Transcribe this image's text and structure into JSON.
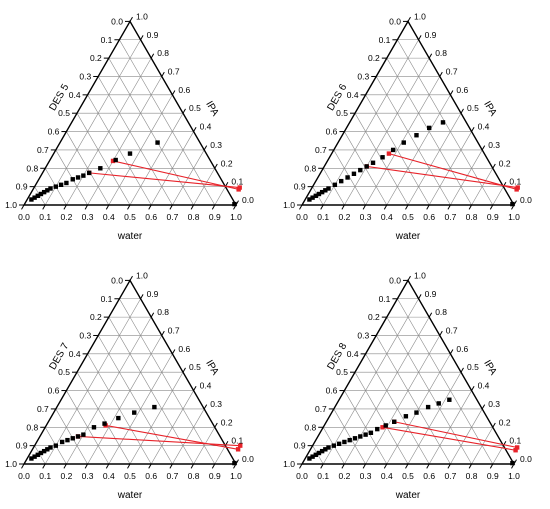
{
  "chart_data": [
    {
      "type": "scatter",
      "title": "",
      "subtype": "ternary",
      "axes": {
        "left": "DES 5",
        "right": "IPA",
        "bottom": "water"
      },
      "left_ticks": [
        "0.0",
        "0.1",
        "0.2",
        "0.3",
        "0.4",
        "0.5",
        "0.6",
        "0.7",
        "0.8",
        "0.9",
        "1.0"
      ],
      "right_ticks": [
        "1.0",
        "0.9",
        "0.8",
        "0.7",
        "0.6",
        "0.5",
        "0.4",
        "0.3",
        "0.2",
        "0.1",
        "0.0"
      ],
      "bottom_ticks": [
        "0.0",
        "0.1",
        "0.2",
        "0.3",
        "0.4",
        "0.5",
        "0.6",
        "0.7",
        "0.8",
        "0.9",
        "1.0"
      ],
      "grid": true,
      "binodal_points": [
        [
          0.02,
          0.03
        ],
        [
          0.03,
          0.04
        ],
        [
          0.04,
          0.05
        ],
        [
          0.05,
          0.06
        ],
        [
          0.06,
          0.07
        ],
        [
          0.07,
          0.08
        ],
        [
          0.08,
          0.09
        ],
        [
          0.1,
          0.1
        ],
        [
          0.12,
          0.11
        ],
        [
          0.14,
          0.12
        ],
        [
          0.16,
          0.14
        ],
        [
          0.18,
          0.15
        ],
        [
          0.2,
          0.16
        ],
        [
          0.22,
          0.175
        ],
        [
          0.26,
          0.2
        ],
        [
          0.31,
          0.245
        ],
        [
          0.36,
          0.28
        ],
        [
          0.46,
          0.34
        ],
        [
          0.99,
          0.005
        ]
      ],
      "tie_lines": [
        {
          "start": [
            0.22,
            0.175
          ],
          "end": [
            0.97,
            0.095
          ]
        },
        {
          "start": [
            0.3,
            0.24
          ],
          "end": [
            0.97,
            0.085
          ]
        }
      ]
    },
    {
      "type": "scatter",
      "title": "",
      "subtype": "ternary",
      "axes": {
        "left": "DES 6",
        "right": "IPA",
        "bottom": "water"
      },
      "left_ticks": [
        "0.0",
        "0.1",
        "0.2",
        "0.3",
        "0.4",
        "0.5",
        "0.6",
        "0.7",
        "0.8",
        "0.9",
        "1.0"
      ],
      "right_ticks": [
        "1.0",
        "0.9",
        "0.8",
        "0.7",
        "0.6",
        "0.5",
        "0.4",
        "0.3",
        "0.2",
        "0.1",
        "0.0"
      ],
      "bottom_ticks": [
        "0.0",
        "0.1",
        "0.2",
        "0.3",
        "0.4",
        "0.5",
        "0.6",
        "0.7",
        "0.8",
        "0.9",
        "1.0"
      ],
      "grid": true,
      "binodal_points": [
        [
          0.02,
          0.03
        ],
        [
          0.03,
          0.04
        ],
        [
          0.04,
          0.05
        ],
        [
          0.05,
          0.06
        ],
        [
          0.06,
          0.07
        ],
        [
          0.07,
          0.08
        ],
        [
          0.08,
          0.09
        ],
        [
          0.1,
          0.11
        ],
        [
          0.12,
          0.13
        ],
        [
          0.14,
          0.15
        ],
        [
          0.16,
          0.17
        ],
        [
          0.18,
          0.19
        ],
        [
          0.2,
          0.21
        ],
        [
          0.22,
          0.23
        ],
        [
          0.25,
          0.26
        ],
        [
          0.28,
          0.3
        ],
        [
          0.31,
          0.34
        ],
        [
          0.35,
          0.38
        ],
        [
          0.39,
          0.42
        ],
        [
          0.44,
          0.45
        ],
        [
          0.99,
          0.005
        ]
      ],
      "tie_lines": [
        {
          "start": [
            0.2,
            0.21
          ],
          "end": [
            0.97,
            0.095
          ]
        },
        {
          "start": [
            0.27,
            0.28
          ],
          "end": [
            0.97,
            0.085
          ]
        }
      ]
    },
    {
      "type": "scatter",
      "title": "",
      "subtype": "ternary",
      "axes": {
        "left": "DES 7",
        "right": "IPA",
        "bottom": "water"
      },
      "left_ticks": [
        "0.0",
        "0.1",
        "0.2",
        "0.3",
        "0.4",
        "0.5",
        "0.6",
        "0.7",
        "0.8",
        "0.9",
        "1.0"
      ],
      "right_ticks": [
        "1.0",
        "0.9",
        "0.8",
        "0.7",
        "0.6",
        "0.5",
        "0.4",
        "0.3",
        "0.2",
        "0.1",
        "0.0"
      ],
      "bottom_ticks": [
        "0.0",
        "0.1",
        "0.2",
        "0.3",
        "0.4",
        "0.5",
        "0.6",
        "0.7",
        "0.8",
        "0.9",
        "1.0"
      ],
      "grid": true,
      "binodal_points": [
        [
          0.02,
          0.03
        ],
        [
          0.03,
          0.04
        ],
        [
          0.04,
          0.05
        ],
        [
          0.05,
          0.06
        ],
        [
          0.06,
          0.07
        ],
        [
          0.07,
          0.08
        ],
        [
          0.08,
          0.09
        ],
        [
          0.1,
          0.1
        ],
        [
          0.12,
          0.12
        ],
        [
          0.14,
          0.13
        ],
        [
          0.16,
          0.14
        ],
        [
          0.18,
          0.15
        ],
        [
          0.2,
          0.16
        ],
        [
          0.23,
          0.2
        ],
        [
          0.27,
          0.22
        ],
        [
          0.32,
          0.25
        ],
        [
          0.38,
          0.28
        ],
        [
          0.46,
          0.31
        ],
        [
          0.99,
          0.005
        ]
      ],
      "tie_lines": [
        {
          "start": [
            0.18,
            0.15
          ],
          "end": [
            0.97,
            0.1
          ]
        },
        {
          "start": [
            0.28,
            0.21
          ],
          "end": [
            0.97,
            0.08
          ]
        }
      ]
    },
    {
      "type": "scatter",
      "title": "",
      "subtype": "ternary",
      "axes": {
        "left": "DES 8",
        "right": "IPA",
        "bottom": "water"
      },
      "left_ticks": [
        "0.0",
        "0.1",
        "0.2",
        "0.3",
        "0.4",
        "0.5",
        "0.6",
        "0.7",
        "0.8",
        "0.9",
        "1.0"
      ],
      "right_ticks": [
        "1.0",
        "0.9",
        "0.8",
        "0.7",
        "0.6",
        "0.5",
        "0.4",
        "0.3",
        "0.2",
        "0.1",
        "0.0"
      ],
      "bottom_ticks": [
        "0.0",
        "0.1",
        "0.2",
        "0.3",
        "0.4",
        "0.5",
        "0.6",
        "0.7",
        "0.8",
        "0.9",
        "1.0"
      ],
      "grid": true,
      "binodal_points": [
        [
          0.02,
          0.03
        ],
        [
          0.03,
          0.04
        ],
        [
          0.04,
          0.05
        ],
        [
          0.05,
          0.06
        ],
        [
          0.06,
          0.07
        ],
        [
          0.07,
          0.08
        ],
        [
          0.08,
          0.09
        ],
        [
          0.1,
          0.1
        ],
        [
          0.12,
          0.11
        ],
        [
          0.14,
          0.12
        ],
        [
          0.16,
          0.13
        ],
        [
          0.18,
          0.14
        ],
        [
          0.2,
          0.15
        ],
        [
          0.22,
          0.16
        ],
        [
          0.24,
          0.17
        ],
        [
          0.26,
          0.19
        ],
        [
          0.29,
          0.21
        ],
        [
          0.32,
          0.23
        ],
        [
          0.36,
          0.26
        ],
        [
          0.4,
          0.28
        ],
        [
          0.44,
          0.31
        ],
        [
          0.48,
          0.33
        ],
        [
          0.52,
          0.35
        ],
        [
          0.99,
          0.005
        ]
      ],
      "tie_lines": [
        {
          "start": [
            0.28,
            0.2
          ],
          "end": [
            0.97,
            0.075
          ]
        },
        {
          "start": [
            0.32,
            0.23
          ],
          "end": [
            0.97,
            0.09
          ]
        }
      ]
    }
  ]
}
